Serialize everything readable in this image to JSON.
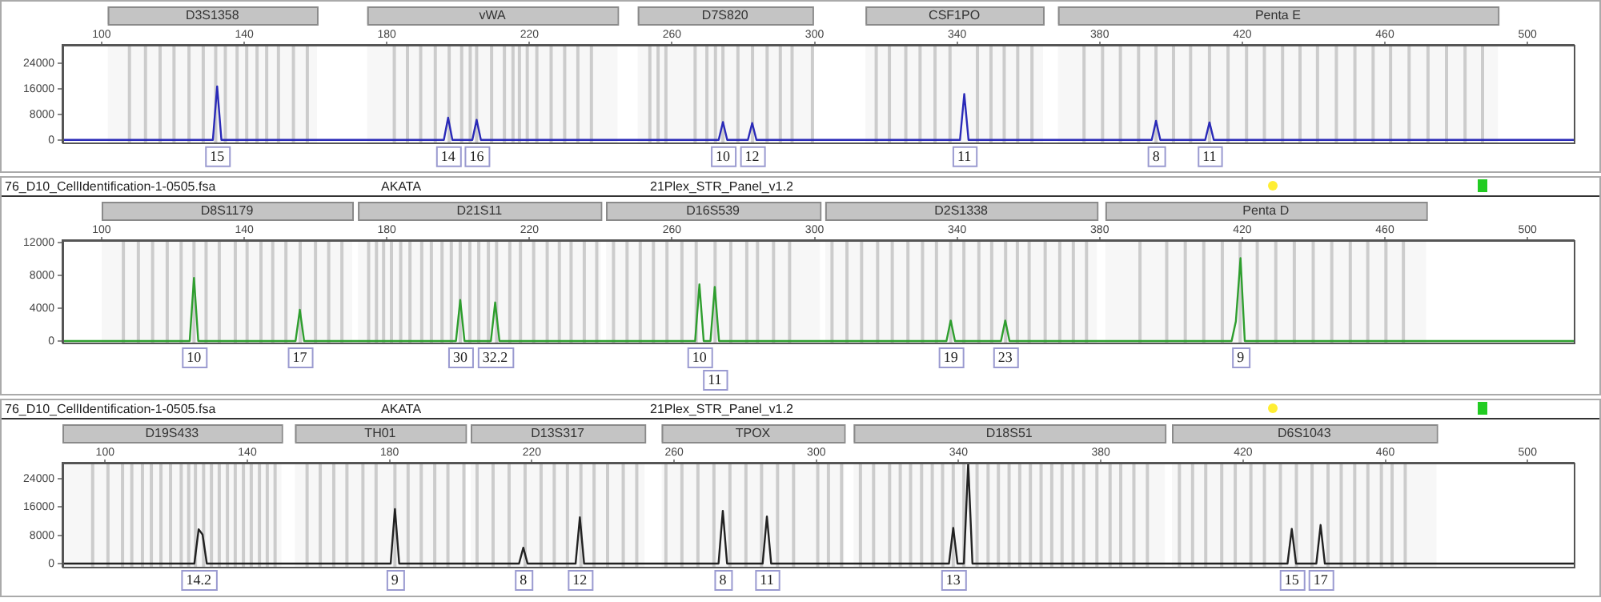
{
  "chart_data": [
    {
      "type": "line",
      "xlim": [
        89,
        513
      ],
      "xticks": [
        100,
        140,
        180,
        220,
        260,
        300,
        340,
        380,
        420,
        460,
        500
      ],
      "ylim": [
        -800,
        29800
      ],
      "yticks": [
        0,
        8000,
        16000,
        24000
      ],
      "series": [
        {
          "color": "#2a2ab8",
          "x": [
            89,
            131.2,
            132.4,
            133.6,
            196,
            197.2,
            198.4,
            204,
            205.2,
            206.4,
            273.1,
            274.3,
            275.5,
            281.3,
            282.5,
            283.7,
            340.8,
            342,
            343.2,
            394.6,
            395.8,
            397,
            409.6,
            410.8,
            412,
            513
          ],
          "values": [
            0,
            0,
            16800,
            0,
            0,
            7000,
            0,
            0,
            6300,
            0,
            0,
            5600,
            0,
            0,
            5300,
            0,
            0,
            14400,
            0,
            0,
            6000,
            0,
            0,
            5500,
            0,
            0
          ]
        }
      ],
      "ref_lines": [
        {
          "axis": "x",
          "value": 107.8
        },
        {
          "axis": "x",
          "value": 112.3
        },
        {
          "axis": "x",
          "value": 116.4
        },
        {
          "axis": "x",
          "value": 120.3
        },
        {
          "axis": "x",
          "value": 124.5
        },
        {
          "axis": "x",
          "value": 128.5
        },
        {
          "axis": "x",
          "value": 132
        },
        {
          "axis": "x",
          "value": 134.7
        },
        {
          "axis": "x",
          "value": 138
        },
        {
          "axis": "x",
          "value": 140.7
        },
        {
          "axis": "x",
          "value": 143.6
        },
        {
          "axis": "x",
          "value": 146.3
        },
        {
          "axis": "x",
          "value": 149.6
        },
        {
          "axis": "x",
          "value": 153.8
        },
        {
          "axis": "x",
          "value": 157.7
        },
        {
          "axis": "x",
          "value": 182.1
        },
        {
          "axis": "x",
          "value": 185.8
        },
        {
          "axis": "x",
          "value": 189.5
        },
        {
          "axis": "x",
          "value": 193.6
        },
        {
          "axis": "x",
          "value": 197.5
        },
        {
          "axis": "x",
          "value": 201
        },
        {
          "axis": "x",
          "value": 203.4
        },
        {
          "axis": "x",
          "value": 205.2
        },
        {
          "axis": "x",
          "value": 209.4
        },
        {
          "axis": "x",
          "value": 213
        },
        {
          "axis": "x",
          "value": 215.4
        },
        {
          "axis": "x",
          "value": 217.2
        },
        {
          "axis": "x",
          "value": 219.4
        },
        {
          "axis": "x",
          "value": 222.1
        },
        {
          "axis": "x",
          "value": 226.1
        },
        {
          "axis": "x",
          "value": 229.9
        },
        {
          "axis": "x",
          "value": 233.6
        },
        {
          "axis": "x",
          "value": 237.4
        },
        {
          "axis": "x",
          "value": 253.8
        },
        {
          "axis": "x",
          "value": 256.1
        },
        {
          "axis": "x",
          "value": 258.3
        },
        {
          "axis": "x",
          "value": 266.5
        },
        {
          "axis": "x",
          "value": 269.8
        },
        {
          "axis": "x",
          "value": 272.2
        },
        {
          "axis": "x",
          "value": 274.3
        },
        {
          "axis": "x",
          "value": 278.5
        },
        {
          "axis": "x",
          "value": 282.6
        },
        {
          "axis": "x",
          "value": 286.7
        },
        {
          "axis": "x",
          "value": 290.4
        },
        {
          "axis": "x",
          "value": 293.7
        },
        {
          "axis": "x",
          "value": 299.4
        },
        {
          "axis": "x",
          "value": 317.3
        },
        {
          "axis": "x",
          "value": 321
        },
        {
          "axis": "x",
          "value": 325.6
        },
        {
          "axis": "x",
          "value": 329.6
        },
        {
          "axis": "x",
          "value": 333.8
        },
        {
          "axis": "x",
          "value": 338
        },
        {
          "axis": "x",
          "value": 345.7
        },
        {
          "axis": "x",
          "value": 349.5
        },
        {
          "axis": "x",
          "value": 353.2
        },
        {
          "axis": "x",
          "value": 357
        },
        {
          "axis": "x",
          "value": 361
        },
        {
          "axis": "x",
          "value": 375.6
        },
        {
          "axis": "x",
          "value": 380.8
        },
        {
          "axis": "x",
          "value": 385.8
        },
        {
          "axis": "x",
          "value": 390.9
        },
        {
          "axis": "x",
          "value": 395.8
        },
        {
          "axis": "x",
          "value": 400.7
        },
        {
          "axis": "x",
          "value": 405.5
        },
        {
          "axis": "x",
          "value": 410.8
        },
        {
          "axis": "x",
          "value": 416
        },
        {
          "axis": "x",
          "value": 421.2
        },
        {
          "axis": "x",
          "value": 426.2
        },
        {
          "axis": "x",
          "value": 431.3
        },
        {
          "axis": "x",
          "value": 436.2
        },
        {
          "axis": "x",
          "value": 441.1
        },
        {
          "axis": "x",
          "value": 446.4
        },
        {
          "axis": "x",
          "value": 451.6
        },
        {
          "axis": "x",
          "value": 456.7
        },
        {
          "axis": "x",
          "value": 461.6
        },
        {
          "axis": "x",
          "value": 466.8
        },
        {
          "axis": "x",
          "value": 472.1
        },
        {
          "axis": "x",
          "value": 477.3
        },
        {
          "axis": "x",
          "value": 482.5
        },
        {
          "axis": "x",
          "value": 487.4
        }
      ],
      "bands": [
        {
          "axis": "x",
          "from": 101.7,
          "to": 160.4,
          "label": "D3S1358"
        },
        {
          "axis": "x",
          "from": 174.5,
          "to": 244.7,
          "label": "vWA"
        },
        {
          "axis": "x",
          "from": 250.4,
          "to": 299.4,
          "label": "D7S820"
        },
        {
          "axis": "x",
          "from": 314.3,
          "to": 364.1,
          "label": "CSF1PO"
        },
        {
          "axis": "x",
          "from": 368.3,
          "to": 491.7,
          "label": "Penta E"
        }
      ],
      "annotations": [
        {
          "text": "15",
          "x": 132.4,
          "y": 0
        },
        {
          "text": "14",
          "x": 197.2,
          "y": 0
        },
        {
          "text": "16",
          "x": 205.2,
          "y": 0
        },
        {
          "text": "10",
          "x": 274.3,
          "y": 0
        },
        {
          "text": "12",
          "x": 282.5,
          "y": 0
        },
        {
          "text": "11",
          "x": 342,
          "y": 0
        },
        {
          "text": "8",
          "x": 395.8,
          "y": 0
        },
        {
          "text": "11",
          "x": 410.8,
          "y": 0
        }
      ]
    },
    {
      "type": "line",
      "xlim": [
        89,
        513
      ],
      "xticks": [
        100,
        140,
        180,
        220,
        260,
        300,
        340,
        380,
        420,
        460,
        500
      ],
      "ylim": [
        -200,
        12300
      ],
      "yticks": [
        0,
        4000,
        8000,
        12000
      ],
      "series": [
        {
          "color": "#2e9e2e",
          "x": [
            89,
            124.7,
            125.9,
            127.1,
            154.4,
            155.6,
            156.8,
            199.4,
            200.6,
            201.8,
            209.2,
            210.4,
            211.6,
            266.5,
            267.7,
            268.9,
            270.8,
            272,
            273.2,
            337,
            338.2,
            339.4,
            352.3,
            353.5,
            354.7,
            417,
            418.2,
            419.5,
            420.7,
            513
          ],
          "values": [
            0,
            0,
            7700,
            0,
            0,
            3800,
            0,
            0,
            5000,
            0,
            0,
            4700,
            0,
            0,
            6900,
            0,
            0,
            6600,
            0,
            0,
            2500,
            0,
            0,
            2500,
            0,
            0,
            2400,
            10100,
            0,
            0
          ]
        }
      ],
      "ref_lines": [
        {
          "axis": "x",
          "value": 106.1
        },
        {
          "axis": "x",
          "value": 110.3
        },
        {
          "axis": "x",
          "value": 114.3
        },
        {
          "axis": "x",
          "value": 118.4
        },
        {
          "axis": "x",
          "value": 122.3
        },
        {
          "axis": "x",
          "value": 125.9
        },
        {
          "axis": "x",
          "value": 129.3
        },
        {
          "axis": "x",
          "value": 133
        },
        {
          "axis": "x",
          "value": 137.5
        },
        {
          "axis": "x",
          "value": 140.8
        },
        {
          "axis": "x",
          "value": 144.7
        },
        {
          "axis": "x",
          "value": 148
        },
        {
          "axis": "x",
          "value": 151.7
        },
        {
          "axis": "x",
          "value": 155.7
        },
        {
          "axis": "x",
          "value": 160
        },
        {
          "axis": "x",
          "value": 163.7
        },
        {
          "axis": "x",
          "value": 167.4
        },
        {
          "axis": "x",
          "value": 174.9
        },
        {
          "axis": "x",
          "value": 177.1
        },
        {
          "axis": "x",
          "value": 179.1
        },
        {
          "axis": "x",
          "value": 181.3
        },
        {
          "axis": "x",
          "value": 183.9
        },
        {
          "axis": "x",
          "value": 186.5
        },
        {
          "axis": "x",
          "value": 189.8
        },
        {
          "axis": "x",
          "value": 192.5
        },
        {
          "axis": "x",
          "value": 195.5
        },
        {
          "axis": "x",
          "value": 198.1
        },
        {
          "axis": "x",
          "value": 200.6
        },
        {
          "axis": "x",
          "value": 203.3
        },
        {
          "axis": "x",
          "value": 205.8
        },
        {
          "axis": "x",
          "value": 208.5
        },
        {
          "axis": "x",
          "value": 210.8
        },
        {
          "axis": "x",
          "value": 214.5
        },
        {
          "axis": "x",
          "value": 217.5
        },
        {
          "axis": "x",
          "value": 221.2
        },
        {
          "axis": "x",
          "value": 225
        },
        {
          "axis": "x",
          "value": 228.4
        },
        {
          "axis": "x",
          "value": 231.7
        },
        {
          "axis": "x",
          "value": 235.4
        },
        {
          "axis": "x",
          "value": 238.9
        },
        {
          "axis": "x",
          "value": 243.6
        },
        {
          "axis": "x",
          "value": 247.4
        },
        {
          "axis": "x",
          "value": 251.1
        },
        {
          "axis": "x",
          "value": 254.8
        },
        {
          "axis": "x",
          "value": 258.6
        },
        {
          "axis": "x",
          "value": 262.8
        },
        {
          "axis": "x",
          "value": 266.8
        },
        {
          "axis": "x",
          "value": 272.1
        },
        {
          "axis": "x",
          "value": 276.5
        },
        {
          "axis": "x",
          "value": 281
        },
        {
          "axis": "x",
          "value": 284
        },
        {
          "axis": "x",
          "value": 288.5
        },
        {
          "axis": "x",
          "value": 293
        },
        {
          "axis": "x",
          "value": 304.9
        },
        {
          "axis": "x",
          "value": 309.1
        },
        {
          "axis": "x",
          "value": 313.2
        },
        {
          "axis": "x",
          "value": 317.7
        },
        {
          "axis": "x",
          "value": 321.8
        },
        {
          "axis": "x",
          "value": 326.2
        },
        {
          "axis": "x",
          "value": 330.3
        },
        {
          "axis": "x",
          "value": 334.2
        },
        {
          "axis": "x",
          "value": 338.2
        },
        {
          "axis": "x",
          "value": 341.9
        },
        {
          "axis": "x",
          "value": 346.1
        },
        {
          "axis": "x",
          "value": 349.7
        },
        {
          "axis": "x",
          "value": 353.6
        },
        {
          "axis": "x",
          "value": 356.9
        },
        {
          "axis": "x",
          "value": 360.2
        },
        {
          "axis": "x",
          "value": 364.7
        },
        {
          "axis": "x",
          "value": 368.8
        },
        {
          "axis": "x",
          "value": 372.6
        },
        {
          "axis": "x",
          "value": 376.3
        },
        {
          "axis": "x",
          "value": 391.3
        },
        {
          "axis": "x",
          "value": 398.8
        },
        {
          "axis": "x",
          "value": 404
        },
        {
          "axis": "x",
          "value": 409.2
        },
        {
          "axis": "x",
          "value": 414.4
        },
        {
          "axis": "x",
          "value": 419.4
        },
        {
          "axis": "x",
          "value": 424.2
        },
        {
          "axis": "x",
          "value": 429.4
        },
        {
          "axis": "x",
          "value": 434.6
        },
        {
          "axis": "x",
          "value": 439.9
        },
        {
          "axis": "x",
          "value": 445.1
        },
        {
          "axis": "x",
          "value": 450.3
        },
        {
          "axis": "x",
          "value": 455.2
        },
        {
          "axis": "x",
          "value": 460.3
        },
        {
          "axis": "x",
          "value": 465.2
        }
      ],
      "bands": [
        {
          "axis": "x",
          "from": 100,
          "to": 170.3,
          "label": "D8S1179"
        },
        {
          "axis": "x",
          "from": 171.9,
          "to": 240,
          "label": "D21S11"
        },
        {
          "axis": "x",
          "from": 241.5,
          "to": 301.5,
          "label": "D16S539"
        },
        {
          "axis": "x",
          "from": 303,
          "to": 379.2,
          "label": "D2S1338"
        },
        {
          "axis": "x",
          "from": 381.6,
          "to": 471.6,
          "label": "Penta D"
        }
      ],
      "annotations": [
        "76_D10_CellIdentification-1-0505.fsa",
        "AKATA",
        "21Plex_STR_Panel_v1.2",
        {
          "text": "10",
          "x": 125.9,
          "y": 0
        },
        {
          "text": "17",
          "x": 155.6,
          "y": 0
        },
        {
          "text": "30",
          "x": 200.6,
          "y": 0
        },
        {
          "text": "32.2",
          "x": 210.4,
          "y": 0
        },
        {
          "text": "10",
          "x": 267.7,
          "y": 0
        },
        {
          "text": "11",
          "x": 272,
          "y": 0
        },
        {
          "text": "19",
          "x": 338.2,
          "y": 0
        },
        {
          "text": "23",
          "x": 353.5,
          "y": 0
        },
        {
          "text": "9",
          "x": 419.5,
          "y": 0
        }
      ]
    },
    {
      "type": "line",
      "xlim": [
        88,
        513
      ],
      "xticks": [
        100,
        140,
        180,
        220,
        260,
        300,
        340,
        380,
        420,
        460,
        500
      ],
      "ylim": [
        -900,
        28500
      ],
      "yticks": [
        0,
        8000,
        16000,
        24000
      ],
      "series": [
        {
          "color": "#222222",
          "x": [
            88,
            125.1,
            126.3,
            127.4,
            128.6,
            180.3,
            181.5,
            182.7,
            216.4,
            217.6,
            218.8,
            232.3,
            233.5,
            234.7,
            272.5,
            273.7,
            274.9,
            284.9,
            286.1,
            287.3,
            337.3,
            338.5,
            339.7,
            341.5,
            342.7,
            343.9,
            432.5,
            433.7,
            434.9,
            440.6,
            441.8,
            443,
            513
          ],
          "values": [
            0,
            0,
            9700,
            8200,
            0,
            0,
            15400,
            0,
            0,
            4500,
            0,
            0,
            13100,
            0,
            0,
            14900,
            0,
            0,
            13300,
            0,
            0,
            10100,
            0,
            0,
            28500,
            0,
            0,
            9800,
            0,
            0,
            10900,
            0,
            0
          ]
        }
      ],
      "ref_lines": [
        {
          "axis": "x",
          "value": 96.5
        },
        {
          "axis": "x",
          "value": 100.8
        },
        {
          "axis": "x",
          "value": 104.9
        },
        {
          "axis": "x",
          "value": 107.5
        },
        {
          "axis": "x",
          "value": 110.5
        },
        {
          "axis": "x",
          "value": 113
        },
        {
          "axis": "x",
          "value": 115.7
        },
        {
          "axis": "x",
          "value": 118.4
        },
        {
          "axis": "x",
          "value": 121.4
        },
        {
          "axis": "x",
          "value": 123.5
        },
        {
          "axis": "x",
          "value": 125.4
        },
        {
          "axis": "x",
          "value": 127.7
        },
        {
          "axis": "x",
          "value": 129.9
        },
        {
          "axis": "x",
          "value": 132.1
        },
        {
          "axis": "x",
          "value": 134.4
        },
        {
          "axis": "x",
          "value": 136.6
        },
        {
          "axis": "x",
          "value": 138.9
        },
        {
          "axis": "x",
          "value": 141.1
        },
        {
          "axis": "x",
          "value": 143.4
        },
        {
          "axis": "x",
          "value": 145.6
        },
        {
          "axis": "x",
          "value": 147.8
        },
        {
          "axis": "x",
          "value": 156.8
        },
        {
          "axis": "x",
          "value": 160.5
        },
        {
          "axis": "x",
          "value": 164.3
        },
        {
          "axis": "x",
          "value": 168
        },
        {
          "axis": "x",
          "value": 172.5
        },
        {
          "axis": "x",
          "value": 176.2
        },
        {
          "axis": "x",
          "value": 181.5
        },
        {
          "axis": "x",
          "value": 185.2
        },
        {
          "axis": "x",
          "value": 188.9
        },
        {
          "axis": "x",
          "value": 192.7
        },
        {
          "axis": "x",
          "value": 196.4
        },
        {
          "axis": "x",
          "value": 200.9
        },
        {
          "axis": "x",
          "value": 204.6
        },
        {
          "axis": "x",
          "value": 209.1
        },
        {
          "axis": "x",
          "value": 213.6
        },
        {
          "axis": "x",
          "value": 218.1
        },
        {
          "axis": "x",
          "value": 222.6
        },
        {
          "axis": "x",
          "value": 226.3
        },
        {
          "axis": "x",
          "value": 230
        },
        {
          "axis": "x",
          "value": 233.8
        },
        {
          "axis": "x",
          "value": 237.5
        },
        {
          "axis": "x",
          "value": 241.3
        },
        {
          "axis": "x",
          "value": 245.7
        },
        {
          "axis": "x",
          "value": 249.5
        },
        {
          "axis": "x",
          "value": 257.7
        },
        {
          "axis": "x",
          "value": 262.2
        },
        {
          "axis": "x",
          "value": 266.7
        },
        {
          "axis": "x",
          "value": 271.2
        },
        {
          "axis": "x",
          "value": 275.7
        },
        {
          "axis": "x",
          "value": 280.2
        },
        {
          "axis": "x",
          "value": 284.6
        },
        {
          "axis": "x",
          "value": 289.1
        },
        {
          "axis": "x",
          "value": 293.6
        },
        {
          "axis": "x",
          "value": 300.4
        },
        {
          "axis": "x",
          "value": 303.4
        },
        {
          "axis": "x",
          "value": 307.1
        },
        {
          "axis": "x",
          "value": 312.4
        },
        {
          "axis": "x",
          "value": 316.1
        },
        {
          "axis": "x",
          "value": 320.6
        },
        {
          "axis": "x",
          "value": 323.6
        },
        {
          "axis": "x",
          "value": 326.5
        },
        {
          "axis": "x",
          "value": 329.6
        },
        {
          "axis": "x",
          "value": 332.6
        },
        {
          "axis": "x",
          "value": 335.5
        },
        {
          "axis": "x",
          "value": 338.5
        },
        {
          "axis": "x",
          "value": 341.5
        },
        {
          "axis": "x",
          "value": 345.2
        },
        {
          "axis": "x",
          "value": 348.3
        },
        {
          "axis": "x",
          "value": 351.2
        },
        {
          "axis": "x",
          "value": 354.2
        },
        {
          "axis": "x",
          "value": 357.2
        },
        {
          "axis": "x",
          "value": 360.2
        },
        {
          "axis": "x",
          "value": 363.2
        },
        {
          "axis": "x",
          "value": 366.2
        },
        {
          "axis": "x",
          "value": 369.1
        },
        {
          "axis": "x",
          "value": 372.2
        },
        {
          "axis": "x",
          "value": 375.2
        },
        {
          "axis": "x",
          "value": 378.9
        },
        {
          "axis": "x",
          "value": 382.6
        },
        {
          "axis": "x",
          "value": 385.6
        },
        {
          "axis": "x",
          "value": 389.3
        },
        {
          "axis": "x",
          "value": 393.1
        },
        {
          "axis": "x",
          "value": 402.1
        },
        {
          "axis": "x",
          "value": 405.8
        },
        {
          "axis": "x",
          "value": 409.5
        },
        {
          "axis": "x",
          "value": 414
        },
        {
          "axis": "x",
          "value": 417.8
        },
        {
          "axis": "x",
          "value": 422.2
        },
        {
          "axis": "x",
          "value": 426
        },
        {
          "axis": "x",
          "value": 430.5
        },
        {
          "axis": "x",
          "value": 435
        },
        {
          "axis": "x",
          "value": 439.4
        },
        {
          "axis": "x",
          "value": 443.9
        },
        {
          "axis": "x",
          "value": 447.6
        },
        {
          "axis": "x",
          "value": 451.4
        },
        {
          "axis": "x",
          "value": 455.1
        },
        {
          "axis": "x",
          "value": 458.9
        },
        {
          "axis": "x",
          "value": 461.9
        },
        {
          "axis": "x",
          "value": 465.6
        }
      ],
      "bands": [
        {
          "axis": "x",
          "from": 88,
          "to": 149.6,
          "label": "D19S433"
        },
        {
          "axis": "x",
          "from": 153.4,
          "to": 201.3,
          "label": "TH01"
        },
        {
          "axis": "x",
          "from": 202.8,
          "to": 251.7,
          "label": "D13S317"
        },
        {
          "axis": "x",
          "from": 256.5,
          "to": 307.8,
          "label": "TPOX"
        },
        {
          "axis": "x",
          "from": 310.5,
          "to": 398,
          "label": "D18S51"
        },
        {
          "axis": "x",
          "from": 400,
          "to": 474.4,
          "label": "D6S1043"
        }
      ],
      "annotations": [
        "76_D10_CellIdentification-1-0505.fsa",
        "AKATA",
        "21Plex_STR_Panel_v1.2",
        {
          "text": "14.2",
          "x": 126.3,
          "y": 0
        },
        {
          "text": "9",
          "x": 181.5,
          "y": 0
        },
        {
          "text": "8",
          "x": 217.6,
          "y": 0
        },
        {
          "text": "12",
          "x": 233.5,
          "y": 0
        },
        {
          "text": "8",
          "x": 273.7,
          "y": 0
        },
        {
          "text": "11",
          "x": 286.1,
          "y": 0
        },
        {
          "text": "13",
          "x": 338.5,
          "y": 0
        },
        {
          "text": "15",
          "x": 433.7,
          "y": 0
        },
        {
          "text": "17",
          "x": 441.8,
          "y": 0
        }
      ]
    }
  ]
}
